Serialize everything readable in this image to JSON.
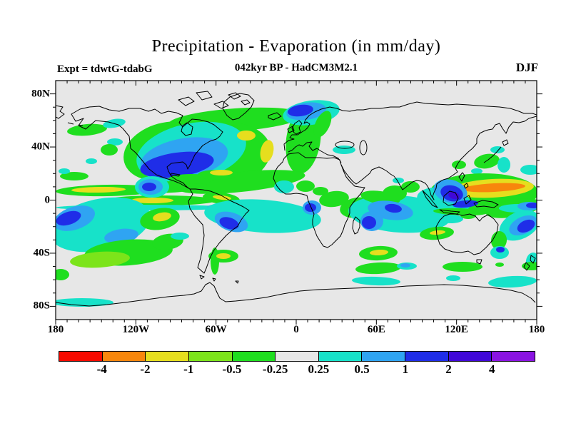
{
  "title": "Precipitation - Evaporation (in mm/day)",
  "header": {
    "experiment_label": "Expt = tdwtG-tdabG",
    "run_label": "042kyr BP - HadCM3M2.1",
    "season_label": "DJF"
  },
  "map": {
    "lat_tick_labels": [
      {
        "label": "80N",
        "lat": 80
      },
      {
        "label": "40N",
        "lat": 40
      },
      {
        "label": "0",
        "lat": 0
      },
      {
        "label": "40S",
        "lat": -40
      },
      {
        "label": "80S",
        "lat": -80
      }
    ],
    "lon_tick_labels": [
      {
        "label": "180",
        "lon": -180
      },
      {
        "label": "120W",
        "lon": -120
      },
      {
        "label": "60W",
        "lon": -60
      },
      {
        "label": "0",
        "lon": 0
      },
      {
        "label": "60E",
        "lon": 60
      },
      {
        "label": "120E",
        "lon": 120
      },
      {
        "label": "180",
        "lon": 180
      }
    ]
  },
  "colorbar": {
    "boundary_labels": [
      "-4",
      "-2",
      "-1",
      "-0.5",
      "-0.25",
      "0.25",
      "0.5",
      "1",
      "2",
      "4"
    ]
  },
  "palette": {
    "segments": [
      "#F80A00",
      "#F8860C",
      "#E6DE1E",
      "#7CE41A",
      "#1FDE1F",
      "#E7E7E7",
      "#17E2C9",
      "#2FA4F2",
      "#1F2DE8",
      "#4008D8",
      "#8A14E2"
    ],
    "map_background": "#E7E7E7",
    "coastline": "#000000",
    "page_background": "#FFFFFF"
  },
  "chart_data": {
    "type": "heatmap",
    "variable": "Precipitation - Evaporation",
    "units": "mm/day",
    "title": "Precipitation - Evaporation (in mm/day)",
    "subtitle": "042kyr BP - HadCM3M2.1",
    "experiment": "Expt = tdwtG-tdabG",
    "season": "DJF",
    "projection": "equirectangular global map with coastlines",
    "lon_range": [
      -180,
      180
    ],
    "lat_range": [
      -90,
      90
    ],
    "lon_tick_labels": [
      "180",
      "120W",
      "60W",
      "0",
      "60E",
      "120E",
      "180"
    ],
    "lat_tick_labels": [
      "80N",
      "40N",
      "0",
      "40S",
      "80S"
    ],
    "contour_levels_mm_day": [
      -4,
      -2,
      -1,
      -0.5,
      -0.25,
      0.25,
      0.5,
      1,
      2,
      4
    ],
    "palette_hex": [
      "#F80A00",
      "#F8860C",
      "#E6DE1E",
      "#7CE41A",
      "#1FDE1F",
      "#E7E7E7",
      "#17E2C9",
      "#2FA4F2",
      "#1F2DE8",
      "#4008D8",
      "#8A14E2"
    ],
    "color_meaning": "red/orange/yellow/green = negative (drier), gray = near zero (-0.25 to 0.25), cyan/blue/violet = positive (wetter)",
    "legend_position": "horizontal colorbar below map",
    "notable_anomalies": [
      {
        "region": "Western North Atlantic storm-track core",
        "approx_lon": -60,
        "approx_lat": 42,
        "value_mm_day": "+1 to +2",
        "note": "blue core ringed by cyan and an outer -0.25 to -0.5 green hook"
      },
      {
        "region": "NE Atlantic yellow patches inside ring",
        "approx_lon": -25,
        "approx_lat": 45,
        "value_mm_day": "-1 to -2"
      },
      {
        "region": "Norwegian Sea",
        "approx_lon": -8,
        "approx_lat": 67,
        "value_mm_day": "+1 to +2"
      },
      {
        "region": "Equatorial central Pacific bands",
        "approx_lon": -145,
        "approx_lat": -2,
        "value_mm_day": "-0.5 to -1"
      },
      {
        "region": "South Pacific convergence zone",
        "approx_lon": -165,
        "approx_lat": -15,
        "value_mm_day": "+0.5 to +2"
      },
      {
        "region": "Subtropical South Pacific green patch",
        "approx_lon": -130,
        "approx_lat": -40,
        "value_mm_day": "-0.25 to -1"
      },
      {
        "region": "Tropical west Pacific north of New Guinea",
        "approx_lon": 150,
        "approx_lat": 6,
        "value_mm_day": "-2 to -4",
        "note": "elongated orange core with yellow/green ring"
      },
      {
        "region": "Philippines / Maritime Continent",
        "approx_lon": 120,
        "approx_lat": 4,
        "value_mm_day": "+1 to +4",
        "note": "blue with small dark-violet core"
      },
      {
        "region": "South Atlantic arc",
        "approx_lon": -30,
        "approx_lat": -15,
        "value_mm_day": "+0.25 to +2"
      },
      {
        "region": "Tropical Atlantic off Angola",
        "approx_lon": -10,
        "approx_lat": -8,
        "value_mm_day": "+1 to +2"
      },
      {
        "region": "East Africa",
        "approx_lon": 33,
        "approx_lat": -8,
        "value_mm_day": "-0.5 to -1"
      },
      {
        "region": "Madagascar / SW Indian Ocean band",
        "approx_lon": 50,
        "approx_lat": -18,
        "value_mm_day": "+1 to +2"
      },
      {
        "region": "SE of Australia / Tasman area",
        "approx_lon": 165,
        "approx_lat": -25,
        "value_mm_day": "+1 to +2"
      },
      {
        "region": "Southern Ocean bands near 55S",
        "approx_lon": 60,
        "approx_lat": -55,
        "value_mm_day": "-0.25 to +0.5"
      }
    ]
  }
}
